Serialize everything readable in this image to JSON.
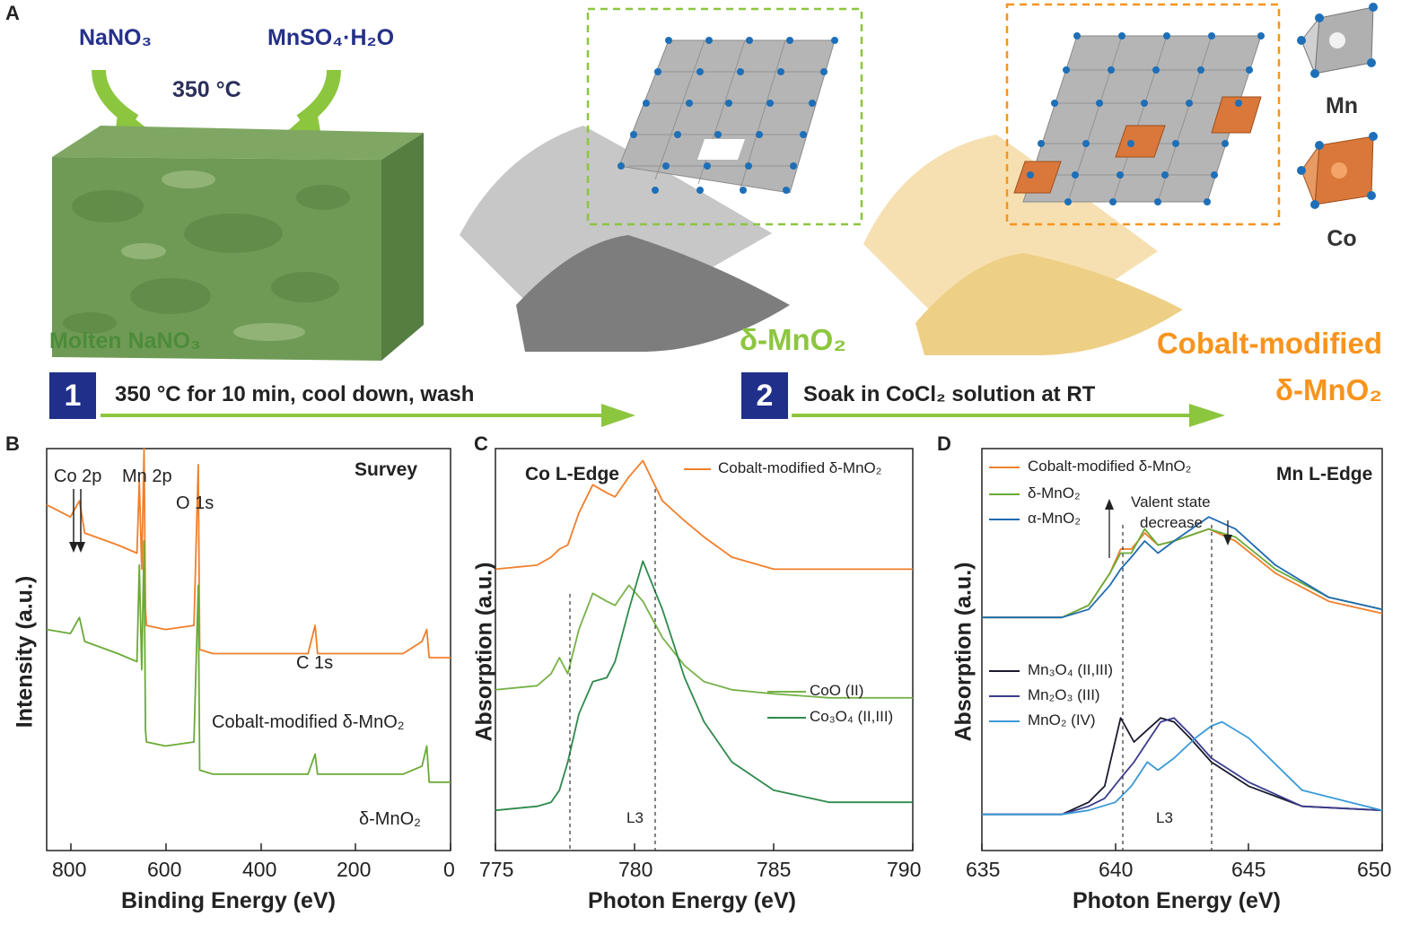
{
  "panel_A": {
    "letter": "A",
    "reagent1": "NaNO₃",
    "reagent2": "MnSO₄·H₂O",
    "temperature": "350 °C",
    "molten_label": "Molten NaNO₃",
    "product1": "δ-MnO₂",
    "product2_line1": "Cobalt-modified",
    "product2_line2": "δ-MnO₂",
    "step1_number": "1",
    "step1_text": "350 °C for 10 min, cool down, wash",
    "step2_number": "2",
    "step2_text": "Soak in CoCl₂ solution at RT",
    "atom_mn": "Mn",
    "atom_co": "Co",
    "colors": {
      "navy": "#1f2f8a",
      "green": "#8cc63f",
      "orange": "#f7941d",
      "molten_green": "#4c8c3a"
    }
  },
  "panel_B": {
    "letter": "B",
    "corner_label": "Survey",
    "peaks": [
      "Co 2p",
      "Mn 2p",
      "O 1s",
      "C 1s"
    ],
    "series_labels": [
      "Cobalt-modified δ-MnO₂",
      "δ-MnO₂"
    ],
    "xlabel": "Binding Energy (eV)",
    "ylabel": "Intensity (a.u.)",
    "xticks": [
      "800",
      "600",
      "400",
      "200",
      "0"
    ]
  },
  "panel_C": {
    "letter": "C",
    "corner_label": "Co L-Edge",
    "legend_top": "Cobalt-modified δ-MnO₂",
    "legend_bottom": [
      "CoO (II)",
      "Co₃O₄ (II,III)"
    ],
    "annotation": "L3",
    "xlabel": "Photon Energy (eV)",
    "ylabel": "Absorption (a.u.)",
    "xticks": [
      "775",
      "780",
      "785",
      "790"
    ]
  },
  "panel_D": {
    "letter": "D",
    "corner_label": "Mn L-Edge",
    "legend_top": [
      "Cobalt-modified δ-MnO₂",
      "δ-MnO₂",
      "α-MnO₂"
    ],
    "legend_bottom": [
      "Mn₃O₄ (II,III)",
      "Mn₂O₃ (III)",
      "MnO₂ (IV)"
    ],
    "valent_line1": "Valent state",
    "valent_line2": "decrease",
    "annotation": "L3",
    "xlabel": "Photon Energy (eV)",
    "ylabel": "Absorption (a.u.)",
    "xticks": [
      "635",
      "640",
      "645",
      "650"
    ]
  },
  "chart_data": [
    {
      "type": "line",
      "panel": "B",
      "xlabel": "Binding Energy (eV)",
      "ylabel": "Intensity (a.u.)",
      "xlim": [
        850,
        0
      ],
      "series": [
        {
          "name": "Cobalt-modified δ-MnO₂",
          "color": "#f07f2a",
          "x": [
            850,
            800,
            781,
            770,
            700,
            660,
            655,
            650,
            645,
            642,
            640,
            600,
            540,
            531,
            528,
            500,
            300,
            285,
            280,
            100,
            60,
            50,
            45,
            0
          ],
          "y": [
            0.86,
            0.83,
            0.87,
            0.79,
            0.76,
            0.74,
            0.92,
            0.7,
            1.0,
            0.6,
            0.56,
            0.55,
            0.56,
            0.96,
            0.5,
            0.49,
            0.49,
            0.56,
            0.49,
            0.49,
            0.52,
            0.55,
            0.48,
            0.48
          ]
        },
        {
          "name": "δ-MnO₂",
          "color": "#6aaa37",
          "x": [
            850,
            800,
            781,
            770,
            700,
            660,
            655,
            650,
            645,
            642,
            640,
            600,
            540,
            531,
            528,
            500,
            300,
            285,
            280,
            100,
            60,
            50,
            45,
            0
          ],
          "y": [
            0.55,
            0.54,
            0.58,
            0.52,
            0.49,
            0.47,
            0.71,
            0.45,
            0.77,
            0.3,
            0.27,
            0.26,
            0.27,
            0.66,
            0.2,
            0.19,
            0.19,
            0.24,
            0.19,
            0.19,
            0.21,
            0.26,
            0.17,
            0.17
          ]
        }
      ]
    },
    {
      "type": "line",
      "panel": "C",
      "xlabel": "Photon Energy (eV)",
      "ylabel": "Absorption (a.u.)",
      "xlim": [
        775,
        790
      ],
      "series": [
        {
          "name": "Cobalt-modified δ-MnO₂",
          "color": "#f07f2a",
          "x": [
            775,
            776.5,
            777,
            777.3,
            777.6,
            778,
            778.5,
            779,
            779.3,
            779.8,
            780.3,
            781,
            781.8,
            782.5,
            783.5,
            785,
            787,
            790
          ],
          "y": [
            0.7,
            0.71,
            0.73,
            0.75,
            0.76,
            0.84,
            0.91,
            0.89,
            0.88,
            0.93,
            0.97,
            0.87,
            0.82,
            0.78,
            0.73,
            0.7,
            0.7,
            0.7
          ]
        },
        {
          "name": "CoO (II)",
          "color": "#78b24a",
          "x": [
            775,
            776.5,
            777,
            777.3,
            777.6,
            778,
            778.5,
            779,
            779.3,
            779.8,
            780.3,
            781,
            781.8,
            782.5,
            783.5,
            785,
            787,
            790
          ],
          "y": [
            0.4,
            0.41,
            0.44,
            0.48,
            0.44,
            0.55,
            0.64,
            0.62,
            0.61,
            0.66,
            0.62,
            0.53,
            0.46,
            0.42,
            0.4,
            0.39,
            0.38,
            0.38
          ]
        },
        {
          "name": "Co₃O₄ (II,III)",
          "color": "#2e8a4c",
          "x": [
            775,
            776.5,
            777,
            777.3,
            777.6,
            778,
            778.5,
            779,
            779.3,
            779.8,
            780.3,
            781,
            781.8,
            782.5,
            783.5,
            785,
            787,
            790
          ],
          "y": [
            0.1,
            0.11,
            0.12,
            0.15,
            0.22,
            0.34,
            0.42,
            0.43,
            0.47,
            0.6,
            0.72,
            0.6,
            0.43,
            0.32,
            0.22,
            0.15,
            0.12,
            0.12
          ]
        }
      ]
    },
    {
      "type": "line",
      "panel": "D",
      "xlabel": "Photon Energy (eV)",
      "ylabel": "Absorption (a.u.)",
      "xlim": [
        635,
        650
      ],
      "series": [
        {
          "name": "Cobalt-modified δ-MnO₂",
          "color": "#f07f2a",
          "x": [
            635,
            638,
            639,
            639.8,
            640.2,
            640.6,
            641.1,
            641.6,
            642.2,
            643.5,
            644.5,
            646,
            648,
            650
          ],
          "y": [
            0.58,
            0.58,
            0.61,
            0.69,
            0.75,
            0.75,
            0.79,
            0.76,
            0.77,
            0.8,
            0.77,
            0.69,
            0.62,
            0.59
          ]
        },
        {
          "name": "δ-MnO₂",
          "color": "#6aaa37",
          "x": [
            635,
            638,
            639,
            639.8,
            640.2,
            640.6,
            641.1,
            641.6,
            642.2,
            643.5,
            644.5,
            646,
            648,
            650
          ],
          "y": [
            0.58,
            0.58,
            0.61,
            0.69,
            0.74,
            0.74,
            0.8,
            0.76,
            0.77,
            0.8,
            0.78,
            0.7,
            0.63,
            0.6
          ]
        },
        {
          "name": "α-MnO₂",
          "color": "#1f6bb0",
          "x": [
            635,
            638,
            639,
            639.8,
            640.2,
            640.6,
            641.1,
            641.6,
            642.2,
            643.5,
            644.5,
            646,
            648,
            650
          ],
          "y": [
            0.58,
            0.58,
            0.6,
            0.66,
            0.7,
            0.73,
            0.77,
            0.74,
            0.77,
            0.83,
            0.8,
            0.71,
            0.63,
            0.6
          ]
        },
        {
          "name": "Mn₃O₄ (II,III)",
          "color": "#1a1a2e",
          "x": [
            635,
            638,
            639,
            639.6,
            640.2,
            640.7,
            641.2,
            641.7,
            642.2,
            642.8,
            643.6,
            645,
            647,
            650
          ],
          "y": [
            0.09,
            0.09,
            0.12,
            0.16,
            0.33,
            0.27,
            0.3,
            0.33,
            0.32,
            0.28,
            0.22,
            0.16,
            0.11,
            0.1
          ]
        },
        {
          "name": "Mn₂O₃ (III)",
          "color": "#3c3c8c",
          "x": [
            635,
            638,
            639,
            639.6,
            640.2,
            640.7,
            641.2,
            641.7,
            642.2,
            642.8,
            643.6,
            645,
            647,
            650
          ],
          "y": [
            0.09,
            0.09,
            0.11,
            0.13,
            0.18,
            0.22,
            0.27,
            0.32,
            0.33,
            0.29,
            0.23,
            0.17,
            0.11,
            0.1
          ]
        },
        {
          "name": "MnO₂ (IV)",
          "color": "#3a9ad9",
          "x": [
            635,
            638,
            639,
            640,
            640.6,
            641.2,
            641.6,
            642.2,
            643,
            643.6,
            644,
            645,
            647,
            650
          ],
          "y": [
            0.09,
            0.09,
            0.1,
            0.12,
            0.16,
            0.22,
            0.2,
            0.23,
            0.28,
            0.31,
            0.32,
            0.28,
            0.15,
            0.1
          ]
        }
      ]
    }
  ]
}
